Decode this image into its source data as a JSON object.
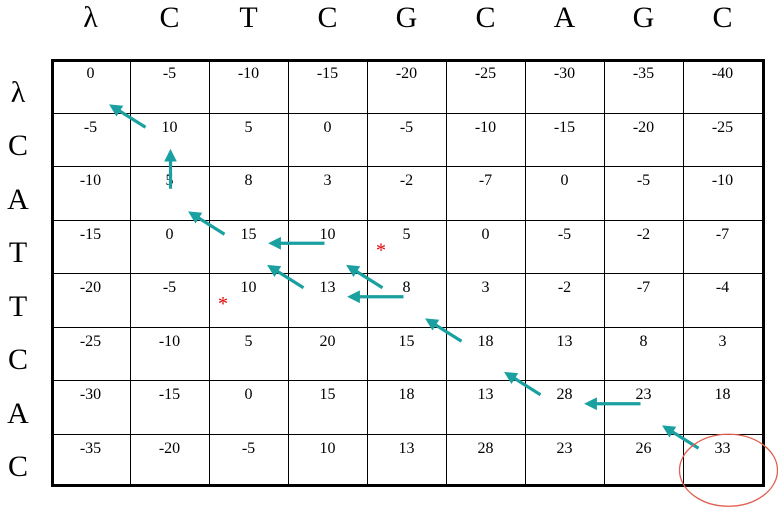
{
  "columns": [
    "λ",
    "C",
    "T",
    "C",
    "G",
    "C",
    "A",
    "G",
    "C"
  ],
  "rows": [
    "λ",
    "C",
    "A",
    "T",
    "T",
    "C",
    "A",
    "C"
  ],
  "matrix": [
    [
      "0",
      "-5",
      "-10",
      "-15",
      "-20",
      "-25",
      "-30",
      "-35",
      "-40"
    ],
    [
      "-5",
      "10",
      "5",
      "0",
      "-5",
      "-10",
      "-15",
      "-20",
      "-25"
    ],
    [
      "-10",
      "5",
      "8",
      "3",
      "-2",
      "-7",
      "0",
      "-5",
      "-10"
    ],
    [
      "-15",
      "0",
      "15",
      "10",
      "5",
      "0",
      "-5",
      "-2",
      "-7"
    ],
    [
      "-20",
      "-5",
      "10",
      "13",
      "8",
      "3",
      "-2",
      "-7",
      "-4"
    ],
    [
      "-25",
      "-10",
      "5",
      "20",
      "15",
      "18",
      "13",
      "8",
      "3"
    ],
    [
      "-30",
      "-15",
      "0",
      "15",
      "18",
      "13",
      "28",
      "23",
      "18"
    ],
    [
      "-35",
      "-20",
      "-5",
      "10",
      "13",
      "28",
      "23",
      "26",
      "33"
    ]
  ],
  "arrows": [
    {
      "from": [
        1,
        1
      ],
      "to": [
        0,
        0
      ],
      "dir": "diagonal"
    },
    {
      "from": [
        2,
        1
      ],
      "to": [
        1,
        1
      ],
      "dir": "up"
    },
    {
      "from": [
        3,
        2
      ],
      "to": [
        2,
        1
      ],
      "dir": "diagonal"
    },
    {
      "from": [
        3,
        3
      ],
      "to": [
        3,
        2
      ],
      "dir": "left"
    },
    {
      "from": [
        4,
        3
      ],
      "to": [
        3,
        2
      ],
      "dir": "diagonal"
    },
    {
      "from": [
        4,
        4
      ],
      "to": [
        3,
        3
      ],
      "dir": "diagonal"
    },
    {
      "from": [
        4,
        4
      ],
      "to": [
        4,
        3
      ],
      "dir": "left"
    },
    {
      "from": [
        5,
        5
      ],
      "to": [
        4,
        4
      ],
      "dir": "diagonal"
    },
    {
      "from": [
        6,
        6
      ],
      "to": [
        5,
        5
      ],
      "dir": "diagonal"
    },
    {
      "from": [
        6,
        7
      ],
      "to": [
        6,
        6
      ],
      "dir": "left"
    },
    {
      "from": [
        7,
        8
      ],
      "to": [
        6,
        7
      ],
      "dir": "diagonal"
    }
  ],
  "markers": [
    {
      "row": 3,
      "col": 4,
      "symbol": "*"
    },
    {
      "row": 4,
      "col": 2,
      "symbol": "*"
    }
  ],
  "highlight": {
    "row": 7,
    "col": 8,
    "shape": "circle"
  },
  "colors": {
    "arrow": "#1aa0a0",
    "marker": "#e00000",
    "highlight": "#e06050",
    "grid": "#000000"
  }
}
